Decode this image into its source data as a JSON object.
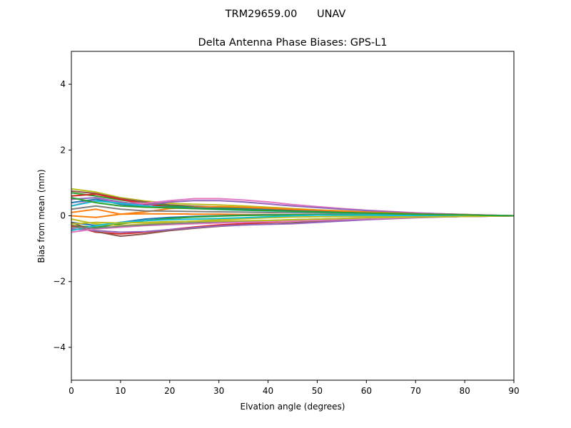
{
  "chart_data": {
    "type": "line",
    "suptitle": "TRM29659.00      UNAV",
    "title": "Delta Antenna Phase Biases: GPS-L1",
    "xlabel": "Elvation angle (degrees)",
    "ylabel": "Bias from mean (mm)",
    "xlim": [
      0,
      90
    ],
    "ylim": [
      -5,
      5
    ],
    "xticks": [
      0,
      10,
      20,
      30,
      40,
      50,
      60,
      70,
      80,
      90
    ],
    "xtick_labels": [
      "0",
      "10",
      "20",
      "30",
      "40",
      "50",
      "60",
      "70",
      "80",
      "90"
    ],
    "yticks": [
      -4,
      -2,
      0,
      2,
      4
    ],
    "ytick_labels": [
      "−4",
      "−2",
      "0",
      "2",
      "4"
    ],
    "grid": false,
    "legend": "none",
    "x": [
      0,
      5,
      10,
      15,
      20,
      25,
      30,
      35,
      40,
      45,
      50,
      55,
      60,
      65,
      70,
      75,
      80,
      85,
      90
    ],
    "series": [
      {
        "color": "#bcbd22",
        "values": [
          0.82,
          0.72,
          0.55,
          0.45,
          0.38,
          0.35,
          0.33,
          0.3,
          0.26,
          0.22,
          0.18,
          0.15,
          0.12,
          0.1,
          0.08,
          0.06,
          0.04,
          0.02,
          0.0
        ]
      },
      {
        "color": "#8c564b",
        "values": [
          0.75,
          0.68,
          0.52,
          0.42,
          0.33,
          0.29,
          0.27,
          0.25,
          0.22,
          0.19,
          0.16,
          0.13,
          0.11,
          0.09,
          0.07,
          0.05,
          0.03,
          0.01,
          0.0
        ]
      },
      {
        "color": "#2ca02c",
        "values": [
          0.7,
          0.6,
          0.48,
          0.38,
          0.3,
          0.27,
          0.25,
          0.23,
          0.2,
          0.17,
          0.14,
          0.12,
          0.1,
          0.08,
          0.06,
          0.04,
          0.03,
          0.01,
          0.0
        ]
      },
      {
        "color": "#d62728",
        "values": [
          0.6,
          0.66,
          0.5,
          0.36,
          0.26,
          0.22,
          0.21,
          0.2,
          0.18,
          0.16,
          0.13,
          0.11,
          0.09,
          0.07,
          0.05,
          0.04,
          0.02,
          0.01,
          0.0
        ]
      },
      {
        "color": "#e377c2",
        "values": [
          0.3,
          0.5,
          0.4,
          0.38,
          0.46,
          0.52,
          0.52,
          0.48,
          0.42,
          0.34,
          0.28,
          0.22,
          0.17,
          0.13,
          0.09,
          0.06,
          0.04,
          0.02,
          0.0
        ]
      },
      {
        "color": "#9467bd",
        "values": [
          0.5,
          0.55,
          0.42,
          0.32,
          0.42,
          0.46,
          0.46,
          0.42,
          0.36,
          0.3,
          0.25,
          0.2,
          0.16,
          0.12,
          0.08,
          0.06,
          0.04,
          0.02,
          0.0
        ]
      },
      {
        "color": "#ff7f0e",
        "values": [
          0.1,
          0.2,
          0.05,
          0.12,
          0.22,
          0.26,
          0.28,
          0.26,
          0.23,
          0.2,
          0.17,
          0.14,
          0.11,
          0.09,
          0.06,
          0.04,
          0.03,
          0.01,
          0.0
        ]
      },
      {
        "color": "#1f77b4",
        "values": [
          0.4,
          0.5,
          0.35,
          0.28,
          0.26,
          0.24,
          0.22,
          0.2,
          0.18,
          0.15,
          0.13,
          0.1,
          0.08,
          0.06,
          0.05,
          0.03,
          0.02,
          0.01,
          0.0
        ]
      },
      {
        "color": "#7f7f7f",
        "values": [
          0.2,
          0.3,
          0.2,
          0.15,
          0.14,
          0.13,
          0.12,
          0.11,
          0.1,
          0.09,
          0.08,
          0.07,
          0.06,
          0.05,
          0.04,
          0.03,
          0.02,
          0.01,
          0.0
        ]
      },
      {
        "color": "#17becf",
        "values": [
          0.3,
          0.45,
          0.38,
          0.3,
          0.25,
          0.22,
          0.19,
          0.17,
          0.15,
          0.13,
          0.11,
          0.09,
          0.07,
          0.05,
          0.04,
          0.03,
          0.02,
          0.01,
          0.0
        ]
      },
      {
        "color": "#ff7f0e",
        "values": [
          0.0,
          -0.05,
          0.05,
          0.06,
          0.06,
          0.05,
          0.05,
          0.04,
          0.04,
          0.03,
          0.03,
          0.02,
          0.02,
          0.02,
          0.01,
          0.01,
          0.01,
          0.0,
          0.0
        ]
      },
      {
        "color": "#1f77b4",
        "values": [
          -0.2,
          -0.3,
          -0.2,
          -0.1,
          -0.05,
          -0.02,
          0.0,
          0.02,
          0.03,
          0.03,
          0.03,
          0.03,
          0.02,
          0.02,
          0.02,
          0.01,
          0.01,
          0.0,
          0.0
        ]
      },
      {
        "color": "#2ca02c",
        "values": [
          -0.3,
          -0.35,
          -0.25,
          -0.15,
          -0.08,
          -0.04,
          -0.01,
          0.01,
          0.02,
          0.03,
          0.03,
          0.03,
          0.02,
          0.02,
          0.02,
          0.01,
          0.01,
          0.0,
          0.0
        ]
      },
      {
        "color": "#bcbd22",
        "values": [
          -0.1,
          -0.25,
          -0.3,
          -0.25,
          -0.2,
          -0.16,
          -0.12,
          -0.09,
          -0.06,
          -0.04,
          -0.03,
          -0.02,
          -0.02,
          -0.01,
          -0.01,
          -0.01,
          0.0,
          0.0,
          0.0
        ]
      },
      {
        "color": "#d62728",
        "values": [
          -0.3,
          -0.5,
          -0.55,
          -0.5,
          -0.42,
          -0.34,
          -0.28,
          -0.24,
          -0.2,
          -0.16,
          -0.13,
          -0.1,
          -0.08,
          -0.06,
          -0.04,
          -0.03,
          -0.02,
          -0.01,
          0.0
        ]
      },
      {
        "color": "#8c564b",
        "values": [
          -0.2,
          -0.48,
          -0.62,
          -0.55,
          -0.45,
          -0.38,
          -0.32,
          -0.28,
          -0.25,
          -0.21,
          -0.17,
          -0.13,
          -0.1,
          -0.07,
          -0.05,
          -0.03,
          -0.02,
          -0.01,
          0.0
        ]
      },
      {
        "color": "#9467bd",
        "values": [
          -0.4,
          -0.45,
          -0.5,
          -0.48,
          -0.42,
          -0.36,
          -0.31,
          -0.28,
          -0.26,
          -0.24,
          -0.2,
          -0.16,
          -0.12,
          -0.09,
          -0.06,
          -0.04,
          -0.02,
          -0.01,
          0.0
        ]
      },
      {
        "color": "#e377c2",
        "values": [
          -0.5,
          -0.4,
          -0.35,
          -0.3,
          -0.27,
          -0.24,
          -0.22,
          -0.2,
          -0.18,
          -0.16,
          -0.14,
          -0.11,
          -0.09,
          -0.07,
          -0.05,
          -0.03,
          -0.02,
          -0.01,
          0.0
        ]
      },
      {
        "color": "#17becf",
        "values": [
          -0.45,
          -0.3,
          -0.2,
          -0.15,
          -0.12,
          -0.1,
          -0.08,
          -0.06,
          -0.03,
          0.0,
          0.02,
          0.02,
          0.02,
          0.01,
          0.01,
          0.01,
          0.0,
          0.0,
          0.0
        ]
      },
      {
        "color": "#7f7f7f",
        "values": [
          -0.35,
          -0.38,
          -0.32,
          -0.28,
          -0.24,
          -0.21,
          -0.18,
          -0.16,
          -0.14,
          -0.12,
          -0.1,
          -0.08,
          -0.06,
          -0.05,
          -0.04,
          -0.03,
          -0.02,
          -0.01,
          0.0
        ]
      },
      {
        "color": "#bcbd22",
        "values": [
          -0.25,
          -0.2,
          -0.22,
          -0.2,
          -0.18,
          -0.17,
          -0.16,
          -0.15,
          -0.14,
          -0.12,
          -0.1,
          -0.08,
          -0.06,
          -0.05,
          -0.04,
          -0.03,
          -0.02,
          -0.01,
          0.0
        ]
      },
      {
        "color": "#2ca02c",
        "values": [
          0.55,
          0.4,
          0.3,
          0.26,
          0.24,
          0.22,
          0.2,
          0.18,
          0.16,
          0.14,
          0.12,
          0.1,
          0.08,
          0.07,
          0.05,
          0.04,
          0.03,
          0.01,
          0.0
        ]
      }
    ]
  }
}
